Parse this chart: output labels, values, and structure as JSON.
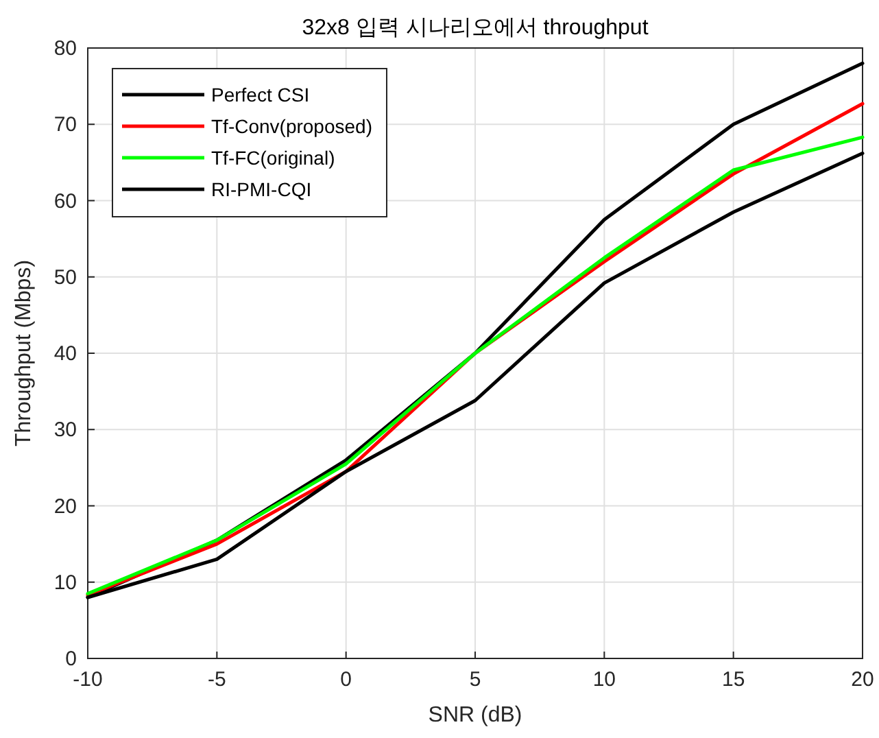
{
  "chart_data": {
    "type": "line",
    "title": "32x8 입력 시나리오에서 throughput",
    "xlabel": "SNR (dB)",
    "ylabel": "Throughput (Mbps)",
    "x": [
      -10,
      -5,
      0,
      5,
      10,
      15,
      20
    ],
    "series": [
      {
        "name": "Perfect CSI",
        "color": "#000000",
        "values": [
          8,
          15.5,
          26,
          40,
          57.5,
          70,
          78
        ]
      },
      {
        "name": "Tf-Conv(proposed)",
        "color": "#ff0000",
        "values": [
          8.3,
          15,
          24.5,
          40,
          52,
          63.5,
          72.7
        ]
      },
      {
        "name": "Tf-FC(original)",
        "color": "#00ff00",
        "values": [
          8.5,
          15.5,
          25.5,
          40,
          52.5,
          64,
          68.3
        ]
      },
      {
        "name": "RI-PMI-CQI",
        "color": "#000000",
        "values": [
          8,
          13,
          24.5,
          33.8,
          49.2,
          58.5,
          66.2
        ]
      }
    ],
    "xlim": [
      -10,
      20
    ],
    "xticks": [
      -10,
      -5,
      0,
      5,
      10,
      15,
      20
    ],
    "ylim": [
      0,
      80
    ],
    "yticks": [
      0,
      10,
      20,
      30,
      40,
      50,
      60,
      70,
      80
    ],
    "grid": true,
    "legend": "top left",
    "marker": "none",
    "line_style": "solid"
  }
}
